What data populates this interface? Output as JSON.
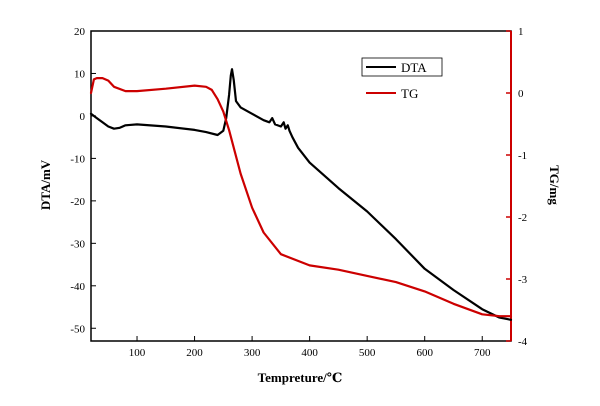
{
  "chart_data": {
    "type": "line",
    "xlabel": "Tempreture/℃",
    "ylabel_left": "DTA/mV",
    "ylabel_right": "TG/mg",
    "xlim": [
      20,
      750
    ],
    "xticks": [
      100,
      200,
      300,
      400,
      500,
      600,
      700
    ],
    "ylim_left": [
      -53,
      20
    ],
    "yticks_left": [
      -50,
      -40,
      -30,
      -20,
      -10,
      0,
      10,
      20
    ],
    "ylim_right": [
      -4,
      1
    ],
    "yticks_right": [
      -4,
      -3,
      -2,
      -1,
      0,
      1
    ],
    "right_axis_color": "#cc0000",
    "grid": false,
    "legend_position": "top-right",
    "series": [
      {
        "name": "DTA",
        "axis": "left",
        "color": "#000000",
        "x": [
          20,
          30,
          40,
          50,
          60,
          70,
          80,
          100,
          150,
          200,
          220,
          240,
          250,
          255,
          260,
          263,
          265,
          268,
          272,
          280,
          300,
          320,
          330,
          335,
          340,
          350,
          355,
          358,
          362,
          365,
          370,
          380,
          400,
          450,
          500,
          550,
          600,
          650,
          700,
          730,
          750
        ],
        "y": [
          0.5,
          -0.5,
          -1.5,
          -2.5,
          -3.0,
          -2.8,
          -2.2,
          -2.0,
          -2.5,
          -3.3,
          -3.8,
          -4.5,
          -3.5,
          -0.5,
          5.0,
          9.5,
          11.0,
          8.5,
          3.5,
          2.0,
          0.5,
          -1.0,
          -1.5,
          -0.5,
          -2.0,
          -2.5,
          -1.5,
          -3.0,
          -2.2,
          -3.5,
          -5.0,
          -7.5,
          -11.0,
          -17.0,
          -22.5,
          -29.0,
          -36.0,
          -41.0,
          -45.5,
          -47.5,
          -48.0
        ]
      },
      {
        "name": "TG",
        "axis": "right",
        "color": "#cc0000",
        "x": [
          20,
          25,
          30,
          40,
          50,
          60,
          80,
          100,
          150,
          200,
          220,
          230,
          240,
          250,
          260,
          280,
          300,
          320,
          350,
          400,
          450,
          500,
          550,
          600,
          650,
          700,
          730,
          750
        ],
        "y": [
          0.0,
          0.22,
          0.24,
          0.24,
          0.2,
          0.1,
          0.03,
          0.03,
          0.07,
          0.12,
          0.1,
          0.05,
          -0.1,
          -0.3,
          -0.6,
          -1.3,
          -1.85,
          -2.25,
          -2.6,
          -2.78,
          -2.85,
          -2.95,
          -3.05,
          -3.2,
          -3.4,
          -3.57,
          -3.6,
          -3.6
        ]
      }
    ]
  }
}
